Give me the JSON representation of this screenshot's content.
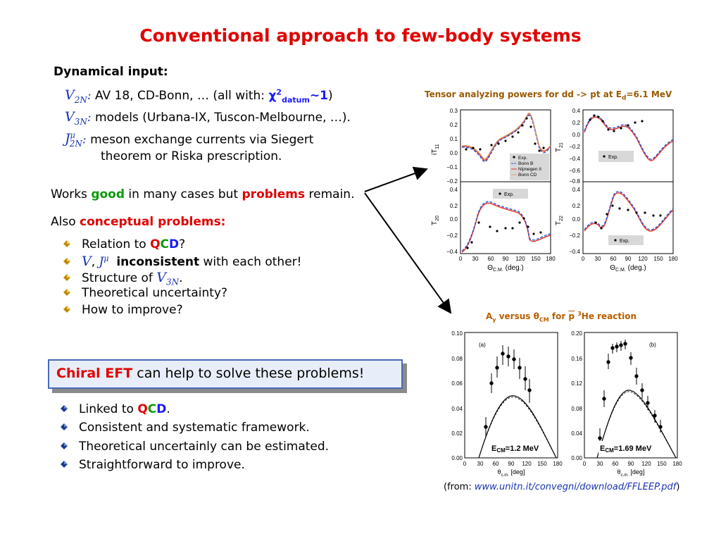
{
  "title": "Conventional approach to few-body systems",
  "dynamical_input": {
    "heading": "Dynamical input:",
    "items": [
      {
        "symbol": "V",
        "sub": "2N",
        "sup": "",
        "text_before": "AV 18, CD-Bonn, …  (all with: ",
        "chi": "χ",
        "chi_sup": "2",
        "chi_sub": "datum",
        "chi_tail": "~1",
        "text_after": ")"
      },
      {
        "symbol": "V",
        "sub": "3N",
        "sup": "",
        "text": "models (Urbana-IX, Tuscon-Melbourne, …)."
      },
      {
        "symbol": "J",
        "sub": "2N",
        "sup": "μ",
        "text_line1": "meson exchange currents via Siegert",
        "text_line2": "theorem or Riska prescription."
      }
    ]
  },
  "works": {
    "before": "Works ",
    "good": "good",
    "middle": " in many cases but ",
    "problems": "problems",
    "after": " remain."
  },
  "also": {
    "before": "Also ",
    "highlight": "conceptual problems:"
  },
  "problems_list": [
    {
      "before": "Relation to ",
      "q": "Q",
      "c": "C",
      "d": "D",
      "after": "?"
    },
    {
      "v": "V",
      "sep": ",  ",
      "j": "J",
      "j_sup": "μ",
      "bold": "inconsistent",
      "after": " with each other!"
    },
    {
      "before": "Structure of ",
      "v": "V",
      "v_sub": "3N",
      "after": "."
    },
    {
      "text": "Theoretical uncertainty?"
    },
    {
      "text": "How to improve?"
    }
  ],
  "eft": {
    "highlight": "Chiral  EFT",
    "rest": " can help to solve these problems!"
  },
  "eft_list": [
    {
      "before": "Linked to ",
      "q": "Q",
      "c": "C",
      "d": "D",
      "after": "."
    },
    {
      "text": "Consistent and systematic framework."
    },
    {
      "text": "Theoretical uncertainly can be estimated."
    },
    {
      "text": "Straightforward to improve."
    }
  ],
  "fig_top": {
    "title_before": "Tensor analyzing powers for dd -> pt at E",
    "title_sub": "d",
    "title_after": "=6.1 MeV",
    "xlabel": "Θ",
    "xlabel_sub": "C.M.",
    "xunit": "(deg.)",
    "xticks": [
      "0",
      "30",
      "60",
      "90",
      "120",
      "150",
      "180"
    ],
    "panels": [
      {
        "ylabel": "iT",
        "ylabel_sub": "11",
        "yticks": [
          "0.3",
          "0.2",
          "0.1",
          "0.0",
          "−0.1",
          "−0.2"
        ]
      },
      {
        "ylabel": "T",
        "ylabel_sub": "21",
        "yticks": [
          "0.4",
          "0.2",
          "0.0",
          "−0.2",
          "−0.4",
          "−0.6",
          "−0.8"
        ]
      },
      {
        "ylabel": "T",
        "ylabel_sub": "20",
        "yticks": [
          "0.4",
          "0.2",
          "0.0",
          "−0.2",
          "−0.4"
        ]
      },
      {
        "ylabel": "T",
        "ylabel_sub": "22",
        "yticks": [
          "0.4",
          "0.2",
          "0.0",
          "−0.2",
          "−0.4"
        ]
      }
    ],
    "legend": [
      "Exp.",
      "Bonn B",
      "Nijmegen II",
      "Bonn CD"
    ],
    "legend_short": "Exp.",
    "colors": {
      "bonnb": "#3050d0",
      "nijm": "#e03020",
      "bonncd": "#e0a070"
    }
  },
  "fig_bottom": {
    "title_a": "A",
    "title_a_sub": "y",
    "title_mid": " versus θ",
    "title_mid_sub": "CM",
    "title_for": " for ",
    "title_p": "p",
    "title_sup": "3",
    "title_end": "He reaction",
    "panels": [
      {
        "tag": "(a)",
        "yticks": [
          "0.10",
          "0.08",
          "0.06",
          "0.04",
          "0.02",
          "0.00"
        ],
        "energy_prefix": "E",
        "energy_sub": "CM",
        "energy": "=1.2 MeV"
      },
      {
        "tag": "(b)",
        "yticks": [
          "0.20",
          "0.16",
          "0.12",
          "0.08",
          "0.04",
          "0.00"
        ],
        "energy_prefix": "E",
        "energy_sub": "CM",
        "energy": "=1.69 MeV"
      }
    ],
    "xticks": [
      "0",
      "30",
      "60",
      "90",
      "120",
      "150",
      "180"
    ],
    "xlabel": "θ",
    "xlabel_sub": "c.m.",
    "xunit": "[deg]"
  },
  "source": {
    "before": "(from: ",
    "link": "www.unitn.it/convegni/download/FFLEEP.pdf",
    "after": ")"
  }
}
